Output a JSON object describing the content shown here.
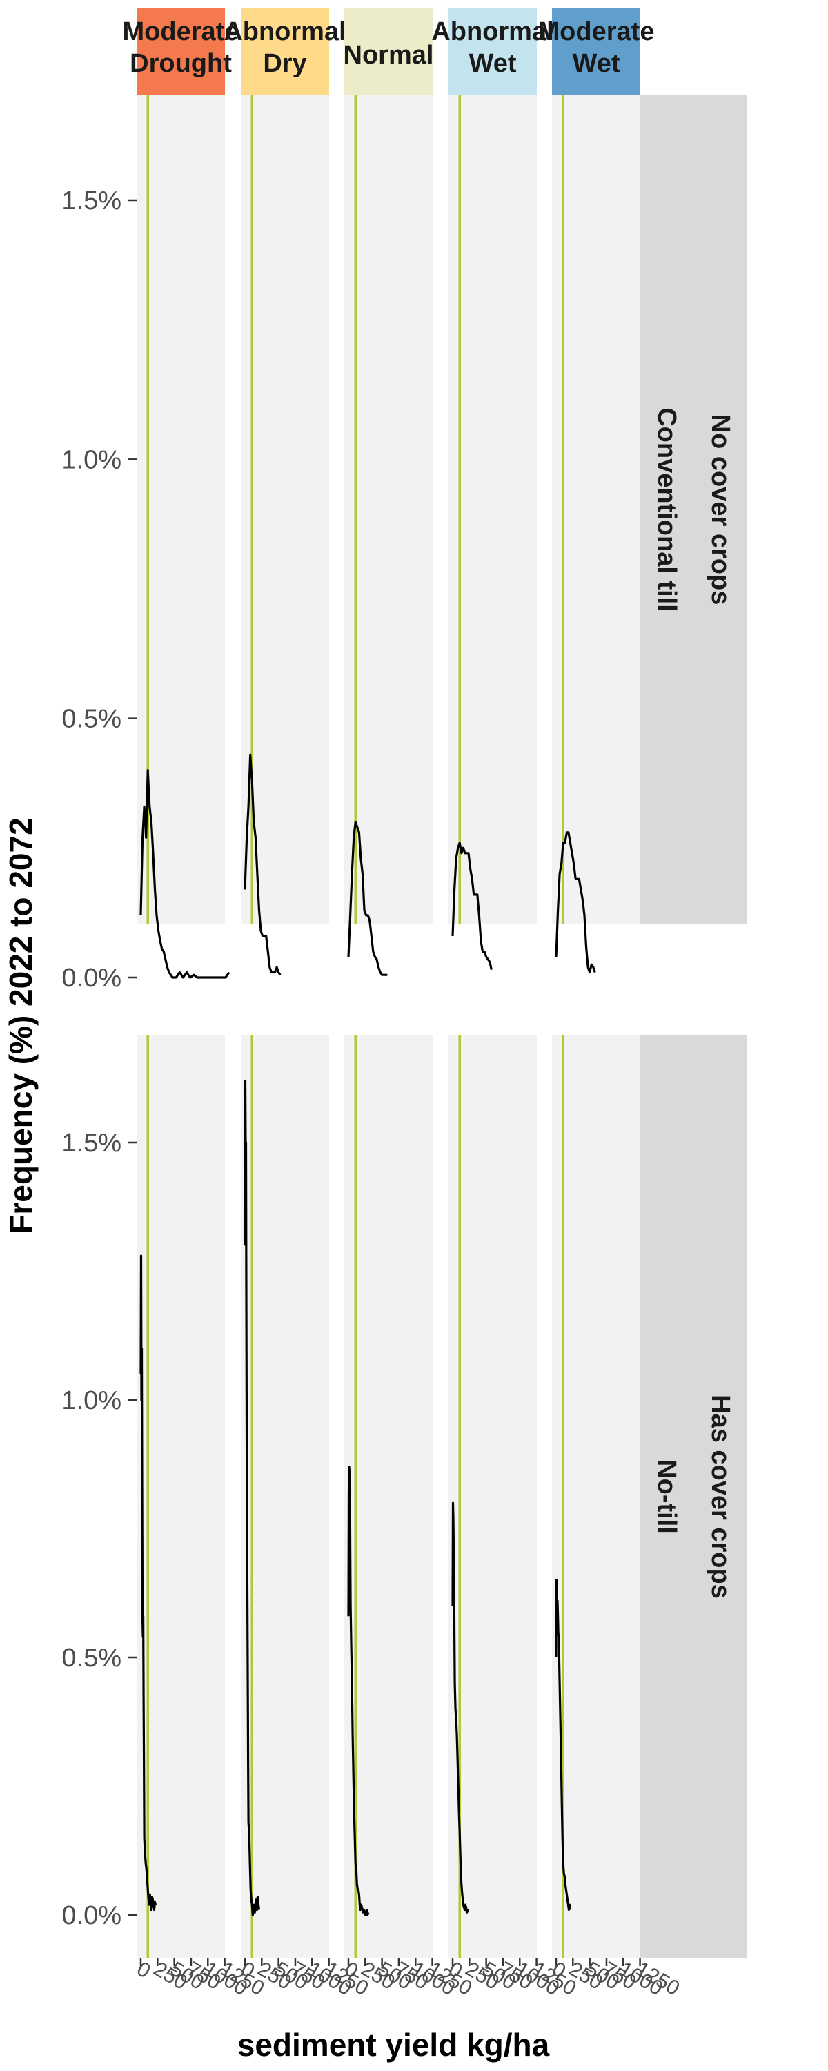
{
  "chart_data": {
    "type": "line",
    "xlabel": "sediment yield kg/ha",
    "ylabel": "Frequency (%) 2022 to 2072",
    "xlim": [
      0,
      1250
    ],
    "ylim": [
      0,
      1.7
    ],
    "y_ticks": [
      0.0,
      0.5,
      1.0,
      1.5
    ],
    "y_tick_labels": [
      "0.0%",
      "0.5%",
      "1.0%",
      "1.5%"
    ],
    "x_ticks": [
      0,
      250,
      500,
      750,
      1000,
      1250
    ],
    "x_tick_labels": [
      "0",
      "250",
      "500",
      "750",
      "1000",
      "1250"
    ],
    "reference_line": {
      "x": 100,
      "color": "#B5C833"
    },
    "columns": [
      {
        "label_lines": [
          "Moderate",
          "Drought"
        ],
        "color": "#F4794C"
      },
      {
        "label_lines": [
          "Abnormal",
          "Dry"
        ],
        "color": "#FEDA8A"
      },
      {
        "label_lines": [
          "Normal"
        ],
        "color": "#EDECC8"
      },
      {
        "label_lines": [
          "Abnormal",
          "Wet"
        ],
        "color": "#C3E4EE"
      },
      {
        "label_lines": [
          "Moderate",
          "Wet"
        ],
        "color": "#609FCB"
      }
    ],
    "rows": [
      {
        "label_outer": "No cover crops",
        "label_inner": "Conventional till"
      },
      {
        "label_outer": "Has cover crops",
        "label_inner": "No-till"
      }
    ],
    "panels": [
      {
        "row": 0,
        "col": 0,
        "x": [
          0,
          25,
          50,
          75,
          100,
          125,
          150,
          175,
          200,
          225,
          250,
          275,
          300,
          325,
          350,
          375,
          400,
          425,
          450,
          475,
          500,
          525,
          550,
          575,
          600,
          650,
          700,
          750,
          800,
          850,
          900,
          950,
          1000,
          1050,
          1100,
          1150,
          1200,
          1250
        ],
        "y": [
          0.12,
          0.27,
          0.33,
          0.27,
          0.4,
          0.33,
          0.3,
          0.24,
          0.17,
          0.12,
          0.09,
          0.07,
          0.055,
          0.05,
          0.035,
          0.02,
          0.01,
          0.005,
          0.0,
          0.0,
          0.0,
          0.005,
          0.01,
          0.005,
          0.0,
          0.01,
          0.0,
          0.005,
          0.0,
          0.0,
          0.0,
          0.0,
          0.0,
          0.0,
          0.0,
          0.0,
          0.0,
          0.01
        ]
      },
      {
        "row": 0,
        "col": 1,
        "x": [
          0,
          25,
          50,
          75,
          100,
          125,
          150,
          175,
          200,
          225,
          250,
          275,
          300,
          325,
          350,
          375,
          400,
          425,
          450,
          475,
          500
        ],
        "y": [
          0.17,
          0.27,
          0.33,
          0.43,
          0.38,
          0.3,
          0.27,
          0.2,
          0.13,
          0.09,
          0.08,
          0.08,
          0.08,
          0.05,
          0.02,
          0.01,
          0.01,
          0.01,
          0.02,
          0.01,
          0.005
        ]
      },
      {
        "row": 0,
        "col": 2,
        "x": [
          0,
          25,
          50,
          75,
          100,
          125,
          150,
          175,
          200,
          225,
          250,
          275,
          300,
          325,
          350,
          375,
          400,
          425,
          450,
          475,
          500,
          525,
          550
        ],
        "y": [
          0.04,
          0.12,
          0.2,
          0.27,
          0.3,
          0.29,
          0.28,
          0.23,
          0.2,
          0.13,
          0.12,
          0.12,
          0.11,
          0.08,
          0.05,
          0.04,
          0.035,
          0.02,
          0.01,
          0.005,
          0.005,
          0.005,
          0.005
        ]
      },
      {
        "row": 0,
        "col": 3,
        "x": [
          0,
          25,
          50,
          75,
          100,
          125,
          150,
          175,
          200,
          225,
          250,
          275,
          300,
          325,
          350,
          375,
          400,
          425,
          450,
          475,
          500,
          525,
          550
        ],
        "y": [
          0.08,
          0.17,
          0.23,
          0.25,
          0.26,
          0.24,
          0.25,
          0.24,
          0.24,
          0.24,
          0.21,
          0.19,
          0.16,
          0.16,
          0.16,
          0.12,
          0.07,
          0.05,
          0.05,
          0.04,
          0.035,
          0.03,
          0.015
        ]
      },
      {
        "row": 0,
        "col": 4,
        "x": [
          0,
          25,
          50,
          75,
          100,
          125,
          150,
          175,
          200,
          225,
          250,
          275,
          300,
          325,
          350,
          375,
          400,
          425,
          450,
          475,
          500,
          525,
          550
        ],
        "y": [
          0.04,
          0.13,
          0.2,
          0.22,
          0.26,
          0.26,
          0.28,
          0.28,
          0.26,
          0.24,
          0.22,
          0.19,
          0.19,
          0.19,
          0.17,
          0.15,
          0.12,
          0.06,
          0.02,
          0.01,
          0.025,
          0.02,
          0.01
        ]
      },
      {
        "row": 1,
        "col": 0,
        "x": [
          0,
          5,
          10,
          15,
          20,
          25,
          30,
          35,
          40,
          45,
          50,
          60,
          70,
          80,
          90,
          100,
          110,
          120,
          130,
          140,
          150,
          160,
          170,
          180,
          190,
          200,
          210
        ],
        "y": [
          1.05,
          1.28,
          1.0,
          1.1,
          0.83,
          0.57,
          0.54,
          0.58,
          0.42,
          0.3,
          0.15,
          0.12,
          0.1,
          0.09,
          0.07,
          0.05,
          0.03,
          0.02,
          0.04,
          0.02,
          0.01,
          0.035,
          0.03,
          0.02,
          0.01,
          0.025,
          0.02
        ]
      },
      {
        "row": 1,
        "col": 1,
        "x": [
          0,
          5,
          10,
          15,
          20,
          25,
          30,
          35,
          40,
          45,
          50,
          60,
          70,
          80,
          90,
          100,
          110,
          120,
          130,
          140,
          150,
          160,
          170,
          180,
          190,
          200
        ],
        "y": [
          1.3,
          1.62,
          1.5,
          1.5,
          1.2,
          0.9,
          0.72,
          0.6,
          0.45,
          0.3,
          0.18,
          0.16,
          0.1,
          0.05,
          0.03,
          0.02,
          0.0,
          0.01,
          0.02,
          0.005,
          0.02,
          0.03,
          0.01,
          0.035,
          0.02,
          0.01
        ]
      },
      {
        "row": 1,
        "col": 2,
        "x": [
          0,
          5,
          10,
          15,
          20,
          30,
          40,
          50,
          60,
          70,
          80,
          90,
          100,
          110,
          120,
          130,
          140,
          150,
          160,
          170,
          180,
          190,
          200,
          210,
          220,
          230,
          240,
          250,
          260,
          270,
          280
        ],
        "y": [
          0.58,
          0.82,
          0.87,
          0.86,
          0.85,
          0.6,
          0.52,
          0.45,
          0.35,
          0.27,
          0.2,
          0.15,
          0.1,
          0.09,
          0.06,
          0.05,
          0.05,
          0.04,
          0.02,
          0.01,
          0.02,
          0.015,
          0.01,
          0.005,
          0.01,
          0.005,
          0.0,
          0.005,
          0.01,
          0.0,
          0.005
        ]
      },
      {
        "row": 1,
        "col": 3,
        "x": [
          0,
          5,
          10,
          15,
          20,
          30,
          40,
          50,
          60,
          70,
          80,
          90,
          100,
          110,
          120,
          130,
          140,
          150,
          160,
          170,
          180,
          190,
          200,
          210,
          220
        ],
        "y": [
          0.6,
          0.8,
          0.77,
          0.72,
          0.66,
          0.45,
          0.4,
          0.38,
          0.35,
          0.3,
          0.25,
          0.2,
          0.16,
          0.11,
          0.07,
          0.05,
          0.035,
          0.02,
          0.015,
          0.01,
          0.02,
          0.015,
          0.005,
          0.01,
          0.005
        ]
      },
      {
        "row": 1,
        "col": 4,
        "x": [
          0,
          5,
          10,
          15,
          20,
          25,
          30,
          35,
          40,
          50,
          60,
          70,
          80,
          90,
          100,
          110,
          120,
          130,
          140,
          150,
          160,
          170,
          180,
          190,
          200
        ],
        "y": [
          0.5,
          0.65,
          0.62,
          0.6,
          0.61,
          0.58,
          0.55,
          0.54,
          0.52,
          0.45,
          0.38,
          0.3,
          0.22,
          0.15,
          0.1,
          0.08,
          0.075,
          0.06,
          0.05,
          0.04,
          0.03,
          0.02,
          0.01,
          0.02,
          0.01
        ]
      }
    ]
  }
}
